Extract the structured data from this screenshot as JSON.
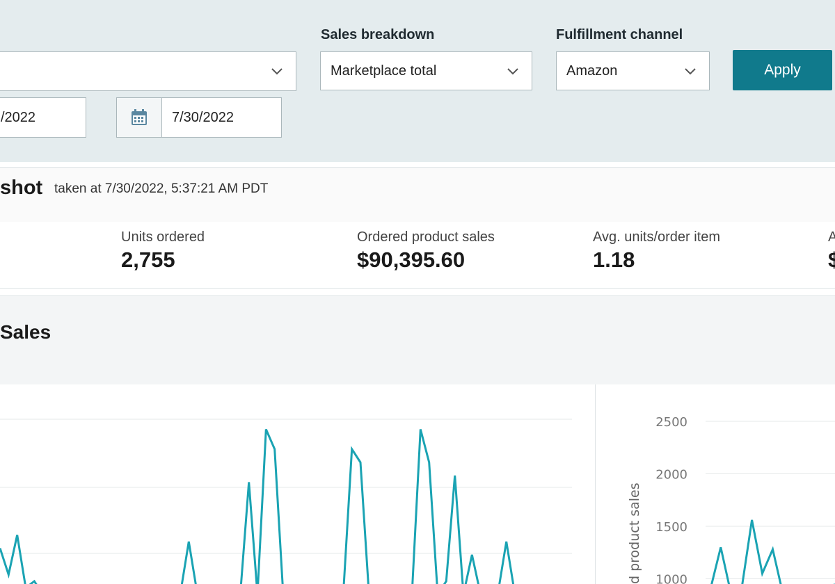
{
  "filters": {
    "sales_breakdown_label": "Sales breakdown",
    "sales_breakdown_value": "Marketplace total",
    "fulfillment_label": "Fulfillment channel",
    "fulfillment_value": "Amazon",
    "first_select_value": "",
    "start_date": "/2022",
    "end_date": "7/30/2022",
    "apply_label": "Apply"
  },
  "snapshot": {
    "title": "shot",
    "taken_at": "taken at 7/30/2022, 5:37:21 AM PDT"
  },
  "metrics": [
    {
      "label": "Units ordered",
      "value": "2,755"
    },
    {
      "label": "Ordered product sales",
      "value": "$90,395.60"
    },
    {
      "label": "Avg. units/order item",
      "value": "1.18"
    }
  ],
  "sales": {
    "title": "Sales"
  },
  "colors": {
    "accent": "#107a8c",
    "line": "#1aa3b3",
    "panel_bg": "#e4ecee"
  },
  "chart_data": [
    {
      "type": "line",
      "title": "",
      "x": [
        0,
        1,
        2,
        3,
        4,
        5,
        6,
        7,
        8,
        9,
        10,
        11,
        12,
        13,
        14,
        15,
        16,
        17,
        18,
        19,
        20,
        21,
        22,
        23,
        24,
        25,
        26,
        27,
        28,
        29,
        30,
        31,
        32,
        33,
        34,
        35,
        36,
        37,
        38,
        39,
        40,
        41,
        42,
        43,
        44,
        45,
        46,
        47,
        48,
        49,
        50,
        51,
        52,
        53,
        54,
        55,
        56,
        57,
        58,
        59,
        60
      ],
      "y": [
        0.55,
        0.35,
        0.65,
        0.25,
        0.3,
        0.2,
        0.2,
        0.2,
        0.2,
        0.2,
        0.2,
        0.2,
        0.2,
        0.2,
        0.2,
        0.2,
        0.2,
        0.2,
        0.2,
        0.2,
        0.2,
        0.2,
        0.6,
        0.2,
        0.2,
        0.2,
        0.2,
        0.2,
        0.2,
        1.05,
        0.2,
        1.45,
        1.3,
        0.2,
        0.2,
        0.2,
        0.25,
        0.2,
        0.2,
        0.2,
        0.2,
        1.3,
        1.2,
        0.2,
        0.2,
        0.2,
        0.2,
        0.2,
        0.2,
        1.45,
        1.2,
        0.2,
        0.3,
        1.1,
        0.2,
        0.5,
        0.2,
        0.2,
        0.2,
        0.6,
        0.2
      ],
      "xlabel": "",
      "ylabel": "",
      "grid": true
    },
    {
      "type": "line",
      "title": "",
      "ylabel": "d product sales",
      "yticks": [
        2500,
        2000,
        1500,
        1000
      ],
      "ylim": [
        1000,
        2500
      ],
      "x": [
        0,
        1,
        2,
        3,
        4,
        5,
        6,
        7,
        8,
        9,
        10,
        11,
        12,
        13
      ],
      "y": [
        850,
        900,
        1300,
        850,
        900,
        1560,
        1050,
        1280,
        850,
        880,
        900,
        900,
        850,
        950
      ],
      "grid": true
    }
  ]
}
